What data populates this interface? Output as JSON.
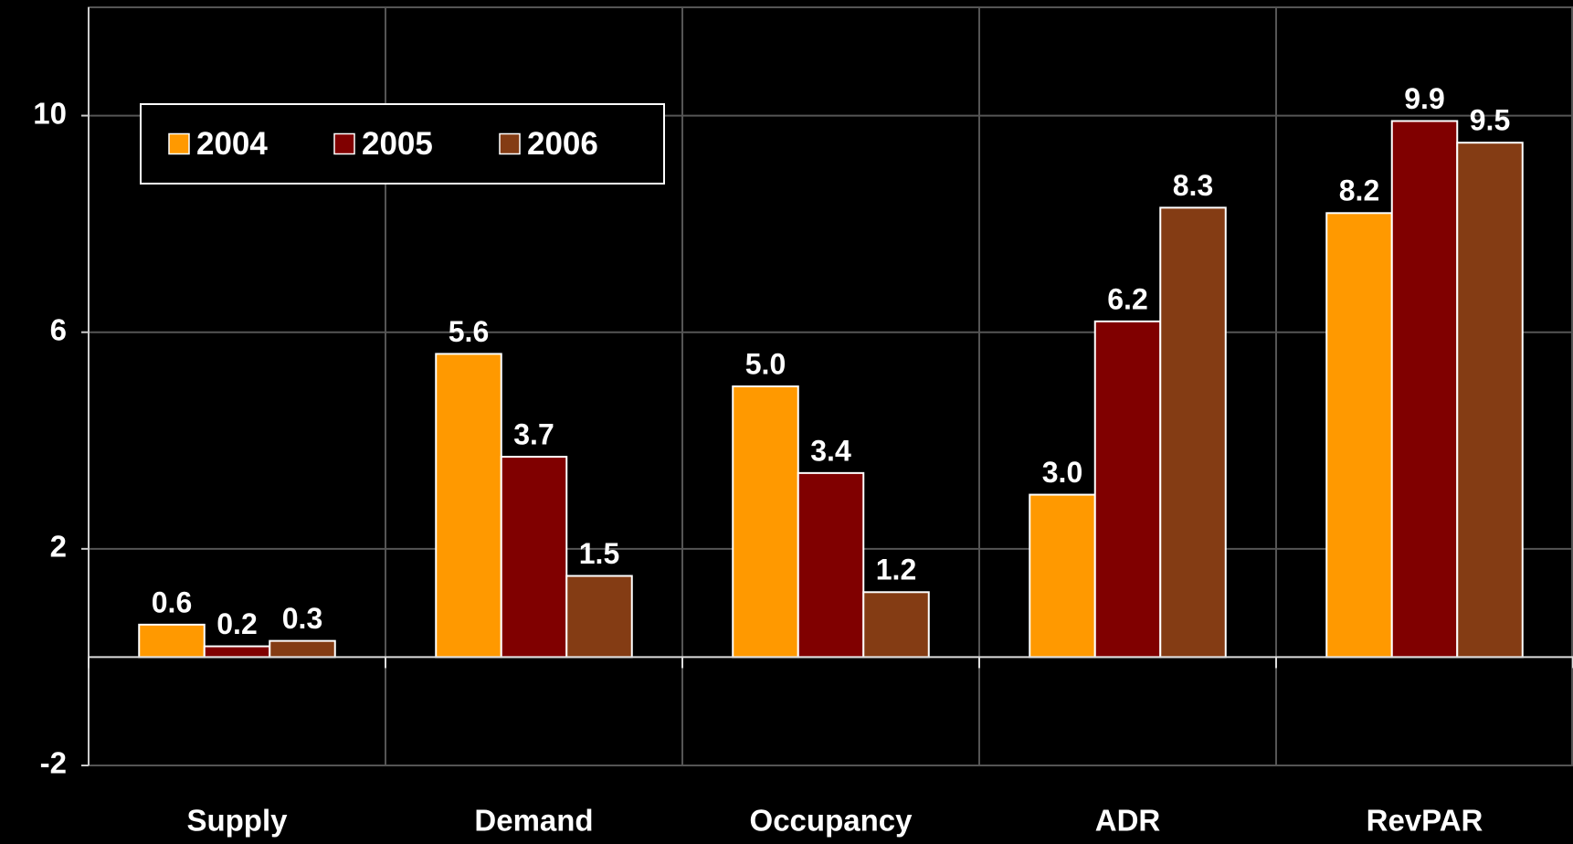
{
  "chart_data": {
    "type": "bar",
    "categories": [
      "Supply",
      "Demand",
      "Occupancy",
      "ADR",
      "RevPAR"
    ],
    "series": [
      {
        "name": "2004",
        "color": "#ff9900",
        "values": [
          0.6,
          5.6,
          5.0,
          3.0,
          8.2
        ],
        "value_labels": [
          "0.6",
          "5.6",
          "5.0",
          "3.0",
          "8.2"
        ]
      },
      {
        "name": "2005",
        "color": "#800000",
        "values": [
          0.2,
          3.7,
          3.4,
          6.2,
          9.9
        ],
        "value_labels": [
          "0.2",
          "3.7",
          "3.4",
          "6.2",
          "9.9"
        ]
      },
      {
        "name": "2006",
        "color": "#843c14",
        "values": [
          0.3,
          1.5,
          1.2,
          8.3,
          9.5
        ],
        "value_labels": [
          "0.3",
          "1.5",
          "1.2",
          "8.3",
          "9.5"
        ]
      }
    ],
    "ylim": [
      -2,
      12
    ],
    "yticks": [
      -2,
      2,
      6,
      10
    ],
    "grid": true,
    "legend": "upper left"
  }
}
